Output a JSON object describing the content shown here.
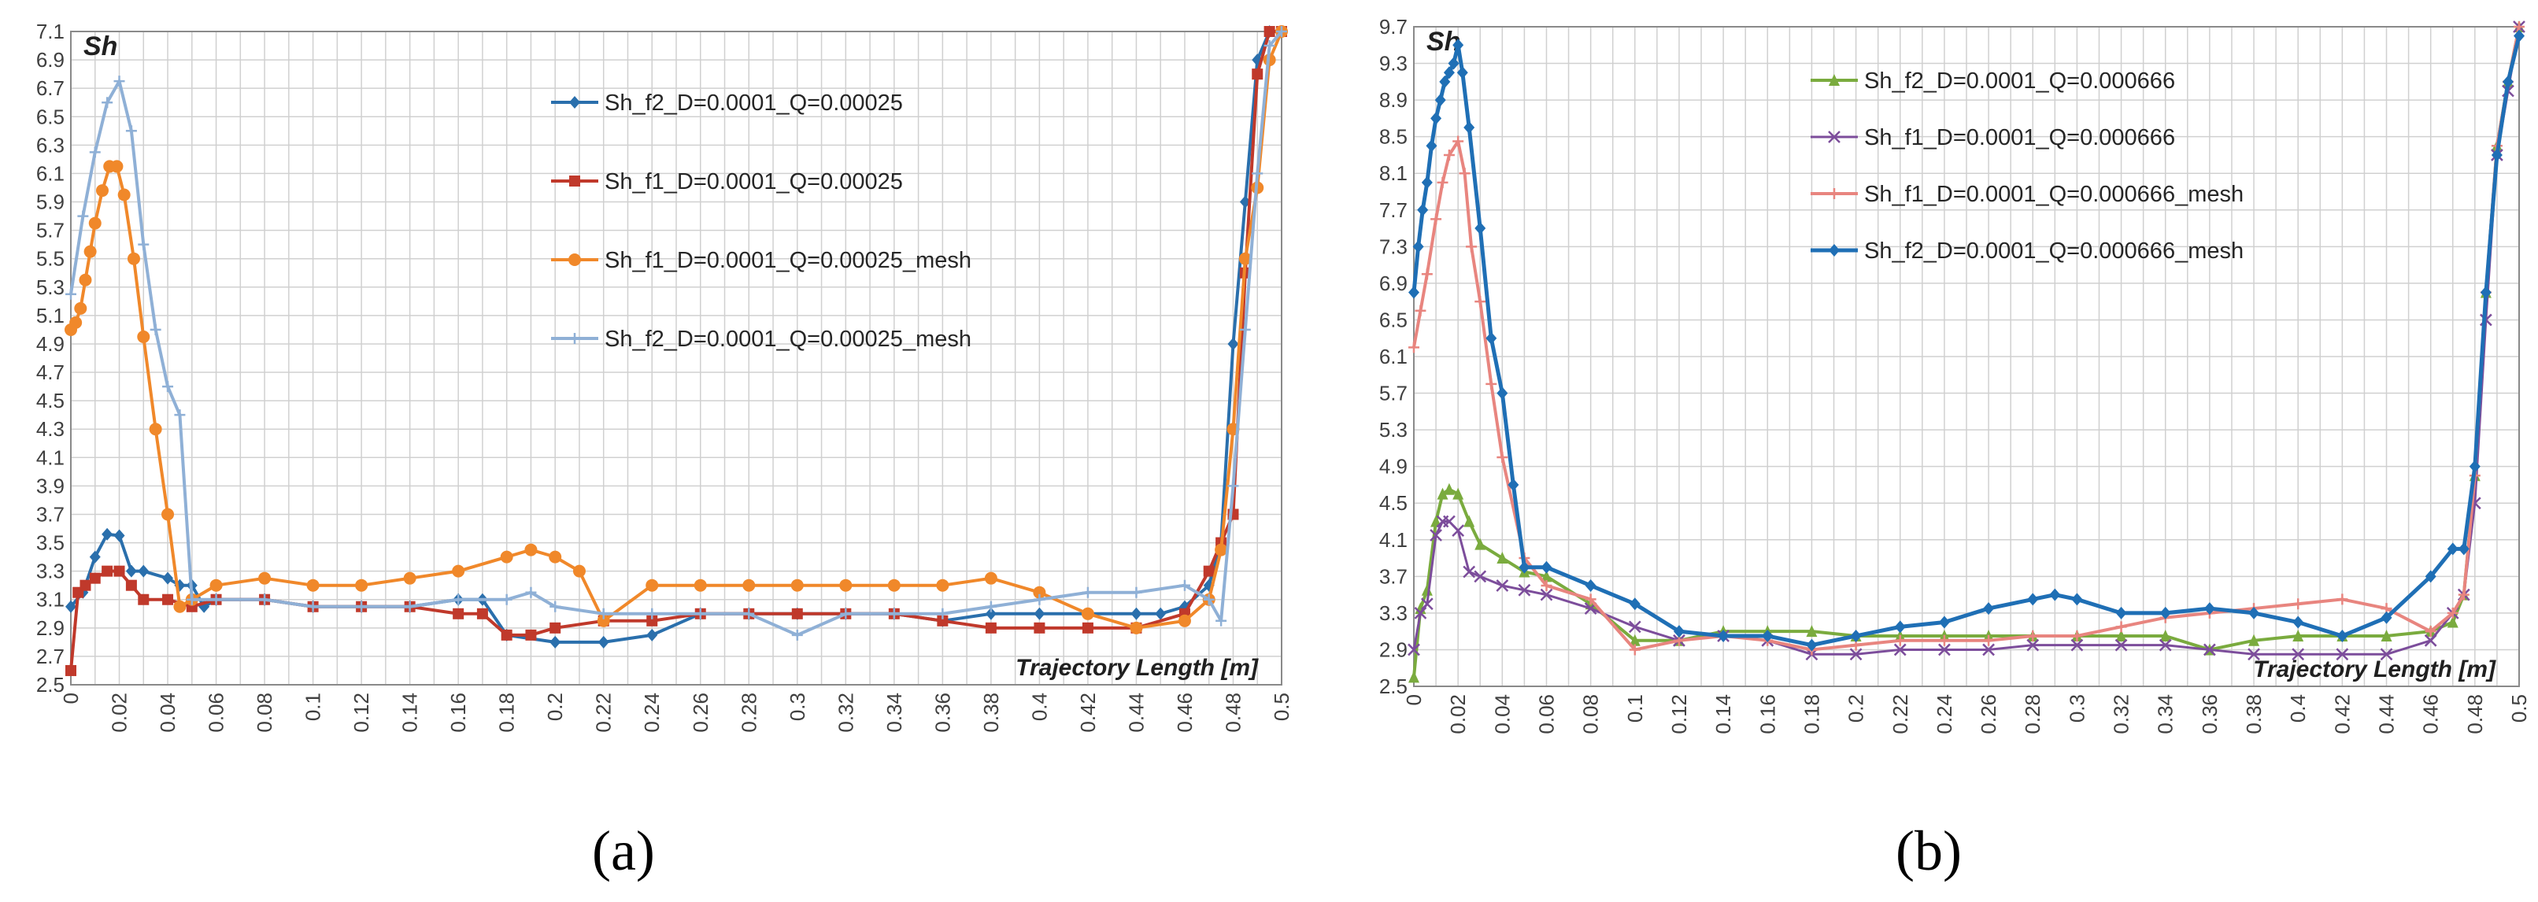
{
  "panels": [
    {
      "id": "a",
      "caption": "(a)",
      "chart_data": {
        "type": "line",
        "ylabel": "Sh",
        "xlabel": "Trajectory Length [m]",
        "xlim": [
          0,
          0.5
        ],
        "ylim": [
          2.5,
          7.1
        ],
        "x_ticks": [
          "0",
          "0.02",
          "0.04",
          "0.06",
          "0.08",
          "0.1",
          "0.12",
          "0.14",
          "0.16",
          "0.18",
          "0.2",
          "0.22",
          "0.24",
          "0.26",
          "0.28",
          "0.3",
          "0.32",
          "0.34",
          "0.36",
          "0.38",
          "0.4",
          "0.42",
          "0.44",
          "0.46",
          "0.48",
          "0.5"
        ],
        "y_ticks": [
          "2.5",
          "2.7",
          "2.9",
          "3.1",
          "3.3",
          "3.5",
          "3.7",
          "3.9",
          "4.1",
          "4.3",
          "4.5",
          "4.7",
          "4.9",
          "5.1",
          "5.3",
          "5.5",
          "5.7",
          "5.9",
          "6.1",
          "6.3",
          "6.5",
          "6.7",
          "6.9",
          "7.1"
        ],
        "grid": true,
        "legend_position": "top-right",
        "series": [
          {
            "name": "Sh_f2_D=0.0001_Q=0.00025",
            "color": "#2a6fac",
            "marker": "diamond",
            "line_width": 4,
            "x": [
              0,
              0.005,
              0.01,
              0.015,
              0.02,
              0.025,
              0.03,
              0.04,
              0.045,
              0.05,
              0.055,
              0.06,
              0.08,
              0.1,
              0.12,
              0.14,
              0.16,
              0.17,
              0.18,
              0.2,
              0.22,
              0.24,
              0.26,
              0.28,
              0.3,
              0.32,
              0.34,
              0.36,
              0.38,
              0.4,
              0.42,
              0.44,
              0.45,
              0.46,
              0.47,
              0.475,
              0.48,
              0.485,
              0.49,
              0.495,
              0.5
            ],
            "y": [
              3.05,
              3.15,
              3.4,
              3.56,
              3.55,
              3.3,
              3.3,
              3.25,
              3.2,
              3.2,
              3.05,
              3.1,
              3.1,
              3.05,
              3.05,
              3.05,
              3.1,
              3.1,
              2.85,
              2.8,
              2.8,
              2.85,
              3.0,
              3.0,
              3.0,
              3.0,
              3.0,
              2.95,
              3.0,
              3.0,
              3.0,
              3.0,
              3.0,
              3.05,
              3.2,
              3.5,
              4.9,
              5.9,
              6.9,
              7.1,
              7.1
            ]
          },
          {
            "name": "Sh_f1_D=0.0001_Q=0.00025",
            "color": "#c0392b",
            "marker": "square",
            "line_width": 4,
            "x": [
              0,
              0.003,
              0.006,
              0.01,
              0.015,
              0.02,
              0.025,
              0.03,
              0.04,
              0.05,
              0.06,
              0.08,
              0.1,
              0.12,
              0.14,
              0.16,
              0.17,
              0.18,
              0.19,
              0.2,
              0.22,
              0.24,
              0.26,
              0.28,
              0.3,
              0.32,
              0.34,
              0.36,
              0.38,
              0.4,
              0.42,
              0.44,
              0.46,
              0.47,
              0.475,
              0.48,
              0.485,
              0.49,
              0.495,
              0.5
            ],
            "y": [
              2.6,
              3.15,
              3.2,
              3.25,
              3.3,
              3.3,
              3.2,
              3.1,
              3.1,
              3.05,
              3.1,
              3.1,
              3.05,
              3.05,
              3.05,
              3.0,
              3.0,
              2.85,
              2.85,
              2.9,
              2.95,
              2.95,
              3.0,
              3.0,
              3.0,
              3.0,
              3.0,
              2.95,
              2.9,
              2.9,
              2.9,
              2.9,
              3.0,
              3.3,
              3.5,
              3.7,
              5.4,
              6.8,
              7.1,
              7.1
            ]
          },
          {
            "name": "Sh_f1_D=0.0001_Q=0.00025_mesh",
            "color": "#f0882a",
            "marker": "circle",
            "line_width": 4,
            "x": [
              0,
              0.002,
              0.004,
              0.006,
              0.008,
              0.01,
              0.013,
              0.016,
              0.019,
              0.022,
              0.026,
              0.03,
              0.035,
              0.04,
              0.045,
              0.05,
              0.06,
              0.08,
              0.1,
              0.12,
              0.14,
              0.16,
              0.18,
              0.19,
              0.2,
              0.21,
              0.22,
              0.24,
              0.26,
              0.28,
              0.3,
              0.32,
              0.34,
              0.36,
              0.38,
              0.4,
              0.42,
              0.44,
              0.46,
              0.47,
              0.475,
              0.48,
              0.485,
              0.49,
              0.495,
              0.5
            ],
            "y": [
              5.0,
              5.05,
              5.15,
              5.35,
              5.55,
              5.75,
              5.98,
              6.15,
              6.15,
              5.95,
              5.5,
              4.95,
              4.3,
              3.7,
              3.05,
              3.1,
              3.2,
              3.25,
              3.2,
              3.2,
              3.25,
              3.3,
              3.4,
              3.45,
              3.4,
              3.3,
              2.95,
              3.2,
              3.2,
              3.2,
              3.2,
              3.2,
              3.2,
              3.2,
              3.25,
              3.15,
              3.0,
              2.9,
              2.95,
              3.1,
              3.45,
              4.3,
              5.5,
              6.0,
              6.9,
              7.1
            ]
          },
          {
            "name": "Sh_f2_D=0.0001_Q=0.00025_mesh",
            "color": "#8fb0d6",
            "marker": "plus",
            "line_width": 4,
            "x": [
              0,
              0.005,
              0.01,
              0.015,
              0.02,
              0.025,
              0.03,
              0.035,
              0.04,
              0.045,
              0.05,
              0.06,
              0.08,
              0.1,
              0.12,
              0.14,
              0.16,
              0.18,
              0.19,
              0.2,
              0.22,
              0.24,
              0.26,
              0.28,
              0.3,
              0.32,
              0.34,
              0.36,
              0.38,
              0.4,
              0.42,
              0.44,
              0.46,
              0.47,
              0.475,
              0.48,
              0.485,
              0.49,
              0.495,
              0.5
            ],
            "y": [
              5.25,
              5.8,
              6.25,
              6.6,
              6.75,
              6.4,
              5.6,
              5.0,
              4.6,
              4.4,
              3.1,
              3.1,
              3.1,
              3.05,
              3.05,
              3.05,
              3.1,
              3.1,
              3.15,
              3.05,
              3.0,
              3.0,
              3.0,
              3.0,
              2.85,
              3.0,
              3.0,
              3.0,
              3.05,
              3.1,
              3.15,
              3.15,
              3.2,
              3.1,
              2.95,
              3.9,
              5.0,
              6.1,
              7.0,
              7.1
            ]
          }
        ]
      }
    },
    {
      "id": "b",
      "caption": "(b)",
      "chart_data": {
        "type": "line",
        "ylabel": "Sh",
        "xlabel": "Trajectory Length [m]",
        "xlim": [
          0,
          0.5
        ],
        "ylim": [
          2.5,
          9.7
        ],
        "x_ticks": [
          "0",
          "0.02",
          "0.04",
          "0.06",
          "0.08",
          "0.1",
          "0.12",
          "0.14",
          "0.16",
          "0.18",
          "0.2",
          "0.22",
          "0.24",
          "0.26",
          "0.28",
          "0.3",
          "0.32",
          "0.34",
          "0.36",
          "0.38",
          "0.4",
          "0.42",
          "0.44",
          "0.46",
          "0.48",
          "0.5"
        ],
        "y_ticks": [
          "2.5",
          "2.9",
          "3.3",
          "3.7",
          "4.1",
          "4.5",
          "4.9",
          "5.3",
          "5.7",
          "6.1",
          "6.5",
          "6.9",
          "7.3",
          "7.7",
          "8.1",
          "8.5",
          "8.9",
          "9.3",
          "9.7"
        ],
        "grid": true,
        "legend_position": "top-right",
        "series": [
          {
            "name": "Sh_f2_D=0.0001_Q=0.000666",
            "color": "#7aab3e",
            "marker": "triangle",
            "line_width": 4,
            "x": [
              0,
              0.003,
              0.006,
              0.01,
              0.013,
              0.016,
              0.02,
              0.025,
              0.03,
              0.04,
              0.05,
              0.06,
              0.08,
              0.1,
              0.12,
              0.14,
              0.16,
              0.18,
              0.2,
              0.22,
              0.24,
              0.26,
              0.28,
              0.3,
              0.32,
              0.34,
              0.36,
              0.38,
              0.4,
              0.42,
              0.44,
              0.46,
              0.47,
              0.475,
              0.48,
              0.485,
              0.49,
              0.495,
              0.5
            ],
            "y": [
              2.6,
              3.35,
              3.55,
              4.3,
              4.6,
              4.65,
              4.6,
              4.3,
              4.05,
              3.9,
              3.75,
              3.7,
              3.4,
              3.0,
              3.0,
              3.1,
              3.1,
              3.1,
              3.05,
              3.05,
              3.05,
              3.05,
              3.05,
              3.05,
              3.05,
              3.05,
              2.9,
              3.0,
              3.05,
              3.05,
              3.05,
              3.1,
              3.2,
              3.5,
              4.8,
              6.8,
              8.4,
              9.1,
              9.7
            ]
          },
          {
            "name": "Sh_f1_D=0.0001_Q=0.000666",
            "color": "#7c4d9b",
            "marker": "x",
            "line_width": 3,
            "x": [
              0,
              0.003,
              0.006,
              0.01,
              0.013,
              0.016,
              0.02,
              0.025,
              0.03,
              0.04,
              0.05,
              0.06,
              0.08,
              0.1,
              0.12,
              0.14,
              0.16,
              0.18,
              0.2,
              0.22,
              0.24,
              0.26,
              0.28,
              0.3,
              0.32,
              0.34,
              0.36,
              0.38,
              0.4,
              0.42,
              0.44,
              0.46,
              0.47,
              0.475,
              0.48,
              0.485,
              0.49,
              0.495,
              0.5
            ],
            "y": [
              2.9,
              3.3,
              3.4,
              4.15,
              4.3,
              4.3,
              4.2,
              3.75,
              3.7,
              3.6,
              3.55,
              3.5,
              3.35,
              3.15,
              3.0,
              3.05,
              3.0,
              2.85,
              2.85,
              2.9,
              2.9,
              2.9,
              2.95,
              2.95,
              2.95,
              2.95,
              2.9,
              2.85,
              2.85,
              2.85,
              2.85,
              3.0,
              3.3,
              3.5,
              4.5,
              6.5,
              8.3,
              9.0,
              9.7
            ]
          },
          {
            "name": "Sh_f1_D=0.0001_Q=0.000666_mesh",
            "color": "#e8857f",
            "marker": "plus",
            "line_width": 4,
            "x": [
              0,
              0.003,
              0.006,
              0.01,
              0.013,
              0.016,
              0.02,
              0.023,
              0.026,
              0.03,
              0.035,
              0.04,
              0.05,
              0.06,
              0.08,
              0.1,
              0.12,
              0.14,
              0.16,
              0.18,
              0.2,
              0.22,
              0.24,
              0.26,
              0.28,
              0.3,
              0.32,
              0.34,
              0.36,
              0.38,
              0.4,
              0.42,
              0.44,
              0.46,
              0.47,
              0.475,
              0.48,
              0.485,
              0.49,
              0.495,
              0.5
            ],
            "y": [
              6.2,
              6.6,
              7.0,
              7.6,
              8.0,
              8.3,
              8.45,
              8.1,
              7.3,
              6.7,
              5.8,
              5.0,
              3.9,
              3.6,
              3.45,
              2.9,
              3.0,
              3.05,
              3.0,
              2.9,
              2.95,
              3.0,
              3.0,
              3.0,
              3.05,
              3.05,
              3.15,
              3.25,
              3.3,
              3.35,
              3.4,
              3.45,
              3.35,
              3.1,
              3.3,
              3.5,
              4.8,
              6.8,
              8.4,
              9.1,
              9.7
            ]
          },
          {
            "name": "Sh_f2_D=0.0001_Q=0.000666_mesh",
            "color": "#1f6fb5",
            "marker": "diamond",
            "line_width": 5,
            "x": [
              0,
              0.002,
              0.004,
              0.006,
              0.008,
              0.01,
              0.012,
              0.014,
              0.016,
              0.018,
              0.02,
              0.022,
              0.025,
              0.03,
              0.035,
              0.04,
              0.045,
              0.05,
              0.06,
              0.08,
              0.1,
              0.12,
              0.14,
              0.16,
              0.18,
              0.2,
              0.22,
              0.24,
              0.26,
              0.28,
              0.29,
              0.3,
              0.32,
              0.34,
              0.36,
              0.38,
              0.4,
              0.42,
              0.44,
              0.46,
              0.47,
              0.475,
              0.48,
              0.485,
              0.49,
              0.495,
              0.5
            ],
            "y": [
              6.8,
              7.3,
              7.7,
              8.0,
              8.4,
              8.7,
              8.9,
              9.1,
              9.2,
              9.3,
              9.5,
              9.2,
              8.6,
              7.5,
              6.3,
              5.7,
              4.7,
              3.8,
              3.8,
              3.6,
              3.4,
              3.1,
              3.05,
              3.05,
              2.95,
              3.05,
              3.15,
              3.2,
              3.35,
              3.45,
              3.5,
              3.45,
              3.3,
              3.3,
              3.35,
              3.3,
              3.2,
              3.05,
              3.25,
              3.7,
              4.0,
              4.0,
              4.9,
              6.8,
              8.3,
              9.1,
              9.6
            ]
          }
        ]
      }
    }
  ]
}
